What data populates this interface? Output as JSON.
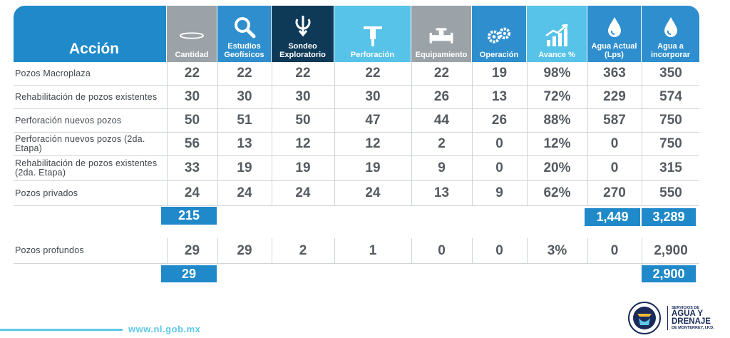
{
  "header": {
    "accion_label": "Acción",
    "columns": [
      {
        "label": "Cantidad",
        "icon": "ring-icon",
        "color": "#9ba3a8"
      },
      {
        "label": "Estudios Geofísicos",
        "icon": "magnifier-icon",
        "color": "#2f8fce"
      },
      {
        "label": "Sondeo Exploratorio",
        "icon": "drill-probe-icon",
        "color": "#0e3a57"
      },
      {
        "label": "Perforación",
        "icon": "jackhammer-icon",
        "color": "#57c3e8"
      },
      {
        "label": "Equipamiento",
        "icon": "pipe-valve-icon",
        "color": "#9ba3a8"
      },
      {
        "label": "Operación",
        "icon": "gears-icon",
        "color": "#2f8fce"
      },
      {
        "label": "Avance %",
        "icon": "growth-chart-icon",
        "color": "#57c3e8"
      },
      {
        "label": "Agua Actual (Lps)",
        "icon": "water-drop-icon",
        "color": "#2f8fce"
      },
      {
        "label": "Agua a incorporar",
        "icon": "water-drop-icon",
        "color": "#2f8fce"
      }
    ]
  },
  "rows": [
    {
      "label": "Pozos Macroplaza",
      "values": [
        "22",
        "22",
        "22",
        "22",
        "22",
        "19",
        "98%",
        "363",
        "350"
      ]
    },
    {
      "label": "Rehabilitación de pozos existentes",
      "values": [
        "30",
        "30",
        "30",
        "30",
        "26",
        "13",
        "72%",
        "229",
        "574"
      ]
    },
    {
      "label": "Perforación nuevos pozos",
      "values": [
        "50",
        "51",
        "50",
        "47",
        "44",
        "26",
        "88%",
        "587",
        "750"
      ]
    },
    {
      "label": "Perforación nuevos pozos (2da. Etapa)",
      "values": [
        "56",
        "13",
        "12",
        "12",
        "2",
        "0",
        "12%",
        "0",
        "750"
      ]
    },
    {
      "label": "Rehabilitación de pozos existentes (2da. Etapa)",
      "values": [
        "33",
        "19",
        "19",
        "19",
        "9",
        "0",
        "20%",
        "0",
        "315"
      ]
    },
    {
      "label": "Pozos privados",
      "values": [
        "24",
        "24",
        "24",
        "24",
        "13",
        "9",
        "62%",
        "270",
        "550"
      ]
    }
  ],
  "totals_group1": {
    "cantidad": "215",
    "agua_actual": "1,449",
    "agua_incorporar": "3,289"
  },
  "row_profundos": {
    "label": "Pozos profundos",
    "values": [
      "29",
      "29",
      "2",
      "1",
      "0",
      "0",
      "3%",
      "0",
      "2,900"
    ]
  },
  "totals_group2": {
    "cantidad": "29",
    "agua_incorporar": "2,900"
  },
  "footer": {
    "url": "www.nl.gob.mx"
  },
  "logo": {
    "line1": "SERVICIOS DE",
    "line2": "AGUA Y",
    "line3": "DRENAJE",
    "line4": "DE MONTERREY, I.P.D."
  },
  "colors": {
    "accent": "#1f89c9",
    "light_accent": "#57c3e8",
    "navy": "#0e3a57",
    "gray": "#9ba3a8"
  }
}
